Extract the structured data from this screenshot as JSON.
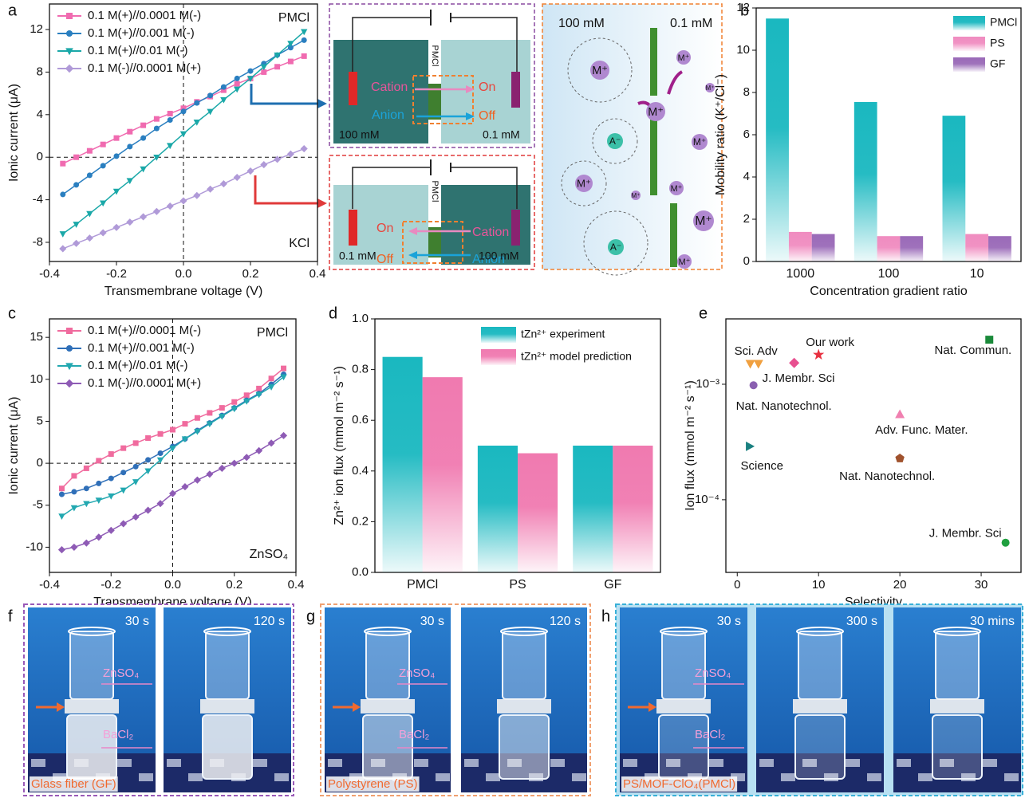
{
  "panel_labels": [
    "a",
    "b",
    "c",
    "d",
    "e",
    "f",
    "g",
    "h"
  ],
  "chart_data": [
    {
      "type": "line",
      "x": [
        -0.36,
        -0.32,
        -0.28,
        -0.24,
        -0.2,
        -0.16,
        -0.12,
        -0.08,
        -0.04,
        0,
        0.04,
        0.08,
        0.12,
        0.16,
        0.2,
        0.24,
        0.28,
        0.32,
        0.36
      ],
      "series": [
        {
          "name": "0.1 M(+)//0.0001 M(-)",
          "color": "#f06bb0",
          "marker": "square",
          "values": [
            -0.6,
            0.0,
            0.6,
            1.2,
            1.8,
            2.4,
            3.0,
            3.6,
            4.1,
            4.6,
            5.2,
            5.7,
            6.3,
            6.9,
            7.4,
            8.0,
            8.5,
            9.0,
            9.5
          ]
        },
        {
          "name": "0.1 M(+)//0.001 M(-)",
          "color": "#2a7fc0",
          "marker": "circle",
          "values": [
            -3.5,
            -2.6,
            -1.7,
            -0.8,
            0.1,
            1.0,
            1.8,
            2.7,
            3.5,
            4.3,
            5.1,
            5.8,
            6.6,
            7.4,
            8.1,
            8.8,
            9.6,
            10.3,
            11.0
          ]
        },
        {
          "name": "0.1 M(+)//0.01 M(-)",
          "color": "#1aa8a8",
          "marker": "tri-down",
          "values": [
            -7.2,
            -6.3,
            -5.3,
            -4.3,
            -3.2,
            -2.2,
            -1.1,
            0.0,
            1.1,
            2.2,
            3.3,
            4.3,
            5.4,
            6.4,
            7.4,
            8.5,
            9.6,
            10.7,
            11.8
          ]
        },
        {
          "name": "0.1 M(-)//0.0001 M(+)",
          "color": "#b09ad8",
          "marker": "diamond",
          "values": [
            -8.6,
            -8.1,
            -7.6,
            -7.1,
            -6.6,
            -6.1,
            -5.6,
            -5.1,
            -4.6,
            -4.1,
            -3.6,
            -3.0,
            -2.5,
            -1.9,
            -1.3,
            -0.7,
            -0.2,
            0.3,
            0.8
          ]
        }
      ],
      "xlim": [
        -0.4,
        0.4
      ],
      "xticks": [
        -0.4,
        -0.2,
        {
          "value": 0,
          "label": "0.0"
        },
        0.2,
        0.4
      ],
      "ylim": [
        -9.8,
        14.4
      ],
      "yticks": [
        -8,
        -4,
        0,
        4,
        8,
        12
      ],
      "xlabel": "Transmembrane voltage (V)",
      "ylabel": "Ionic current (μA)",
      "annotations": [
        "PMCl",
        "KCl"
      ],
      "legend": "upper left"
    },
    {
      "type": "bar",
      "categories": [
        "1000",
        "100",
        "10"
      ],
      "series": [
        {
          "name": "PMCl",
          "color": "#1ab8c0",
          "values": [
            11.5,
            7.55,
            6.9
          ]
        },
        {
          "name": "PS",
          "color": "#f08cc0",
          "values": [
            1.4,
            1.2,
            1.3
          ]
        },
        {
          "name": "GF",
          "color": "#9a6ab8",
          "values": [
            1.3,
            1.2,
            1.2
          ]
        }
      ],
      "ylim": [
        0,
        12
      ],
      "yticks": [
        0,
        2,
        4,
        6,
        8,
        10,
        12
      ],
      "xlabel": "Concentration gradient ratio",
      "ylabel": "Mobility ratio (K⁺/Cl⁻)",
      "legend": "upper right"
    },
    {
      "type": "line",
      "x": [
        -0.36,
        -0.32,
        -0.28,
        -0.24,
        -0.2,
        -0.16,
        -0.12,
        -0.08,
        -0.04,
        0,
        0.04,
        0.08,
        0.12,
        0.16,
        0.2,
        0.24,
        0.28,
        0.32,
        0.36
      ],
      "series": [
        {
          "name": "0.1 M(+)//0.0001 M(-)",
          "color": "#f06b9e",
          "marker": "square",
          "values": [
            -3.0,
            -1.5,
            -0.6,
            0.3,
            1.1,
            1.8,
            2.4,
            3.0,
            3.5,
            4.0,
            4.7,
            5.4,
            6.0,
            6.6,
            7.3,
            8.1,
            8.9,
            10.1,
            11.3
          ]
        },
        {
          "name": "0.1 M(+)//0.001 M(-)",
          "color": "#2f6fb8",
          "marker": "circle",
          "values": [
            -3.7,
            -3.4,
            -3.0,
            -2.4,
            -1.8,
            -1.1,
            -0.4,
            0.4,
            1.2,
            2.0,
            2.9,
            3.9,
            4.8,
            5.7,
            6.6,
            7.5,
            8.3,
            9.4,
            10.6
          ]
        },
        {
          "name": "0.1 M(+)//0.01 M(-)",
          "color": "#22a8b0",
          "marker": "tri-down",
          "values": [
            -6.3,
            -5.3,
            -4.8,
            -4.4,
            -3.9,
            -3.2,
            -2.2,
            -0.9,
            0.4,
            1.8,
            2.9,
            3.8,
            4.7,
            5.6,
            6.5,
            7.4,
            8.2,
            9.1,
            10.3
          ]
        },
        {
          "name": "0.1 M(-)//0.0001 M(+)",
          "color": "#8e5bb5",
          "marker": "diamond",
          "values": [
            -10.3,
            -10.0,
            -9.5,
            -8.8,
            -8.0,
            -7.2,
            -6.4,
            -5.6,
            -4.8,
            -3.6,
            -2.8,
            -2.0,
            -1.3,
            -0.6,
            0.0,
            0.7,
            1.5,
            2.4,
            3.3
          ]
        }
      ],
      "xlim": [
        -0.4,
        0.4
      ],
      "xticks": [
        -0.4,
        -0.2,
        {
          "value": 0,
          "label": "0.0"
        },
        0.2,
        0.4
      ],
      "ylim": [
        -13,
        17.2
      ],
      "yticks": [
        -10,
        -5,
        0,
        5,
        10,
        15
      ],
      "xlabel": "Transmembrane voltage (V)",
      "ylabel": "Ionic current (μA)",
      "annotations": [
        "PMCl",
        "ZnSO₄"
      ],
      "legend": "upper left"
    },
    {
      "type": "bar",
      "categories": [
        "PMCl",
        "PS",
        "GF"
      ],
      "series": [
        {
          "name": "tZn²⁺ experiment",
          "color": "#1ab8c0",
          "values": [
            0.85,
            0.5,
            0.5
          ]
        },
        {
          "name": "tZn²⁺ model prediction",
          "color": "#f07ab0",
          "values": [
            0.77,
            0.47,
            0.5
          ]
        }
      ],
      "ylim": [
        0,
        1.0
      ],
      "yticks": [
        {
          "value": 0,
          "label": "0.0"
        },
        0.2,
        0.4,
        0.6,
        0.8,
        {
          "value": 1,
          "label": "1.0"
        }
      ],
      "ylabel": "Zn²⁺ ion flux (mmol m⁻² s⁻¹)",
      "legend": "upper right"
    },
    {
      "type": "scatter",
      "ylog": true,
      "x": [
        31,
        1.6,
        2.6,
        10,
        7,
        2,
        20,
        1.5,
        20,
        33
      ],
      "values": [
        0.00243,
        0.00151,
        0.00151,
        0.0018,
        0.00153,
        0.00098,
        0.000547,
        0.00029,
        0.000228,
        4.25e-05
      ],
      "labels": [
        "Nat. Commun.",
        "Sci. Adv",
        null,
        "Our work",
        "J. Membr. Sci",
        "Nat. Nanotechnol.",
        "Adv. Func. Mater.",
        "Science",
        "Nat. Nanotechnol.",
        "J. Membr. Sci"
      ],
      "colors": [
        "#1a8a3a",
        "#f0a040",
        "#f0a040",
        "#e83040",
        "#e85090",
        "#8a60b0",
        "#f080b0",
        "#1a8080",
        "#a0522d",
        "#20a040"
      ],
      "markers": [
        "square",
        "tri-down",
        "tri-down",
        "star",
        "diamond",
        "circle",
        "triangle",
        "tri-right",
        "pentagon",
        "circle"
      ],
      "xlim": [
        -1.4,
        34.9
      ],
      "xticks": [
        0,
        10,
        20,
        30
      ],
      "ylim": [
        2.35e-05,
        0.00368
      ],
      "yticks": [
        {
          "value": 0.0001,
          "label": "10⁻⁴"
        },
        {
          "value": 0.001,
          "label": "10⁻³"
        }
      ],
      "xlabel": "Selectivity",
      "ylabel": "Ion flux (mmol m⁻² s⁻¹)"
    }
  ],
  "schematic": {
    "top": {
      "membrane": "PMCl",
      "cation": "Cation",
      "on": "On",
      "anion": "Anion",
      "off": "Off",
      "left_conc": "100 mM",
      "right_conc": "0.1 mM"
    },
    "bottom": {
      "membrane": "PMCl",
      "on": "On",
      "off": "Off",
      "cation": "Cation",
      "anion": "Anion",
      "left_conc": "0.1 mM",
      "right_conc": "100 mM"
    },
    "detail": {
      "left_conc": "100 mM",
      "right_conc": "0.1 mM",
      "ions": [
        "M⁺",
        "M⁺",
        "M⁺",
        "M⁺",
        "A⁻",
        "M⁺",
        "M⁺",
        "M⁺",
        "M⁺",
        "M⁺",
        "A⁻",
        "M⁺"
      ]
    }
  },
  "photos": {
    "f": {
      "times": [
        "30 s",
        "120 s"
      ],
      "top_label": "ZnSO₄",
      "bottom_label": "BaCl₂",
      "caption": "Glass fiber (GF)"
    },
    "g": {
      "times": [
        "30 s",
        "120 s"
      ],
      "top_label": "ZnSO₄",
      "bottom_label": "BaCl₂",
      "caption": "Polystyrene (PS)"
    },
    "h": {
      "times": [
        "30 s",
        "300 s",
        "30 mins"
      ],
      "top_label": "ZnSO₄",
      "bottom_label": "BaCl₂",
      "caption": "PS/MOF-ClO₄(PMCl)"
    }
  }
}
